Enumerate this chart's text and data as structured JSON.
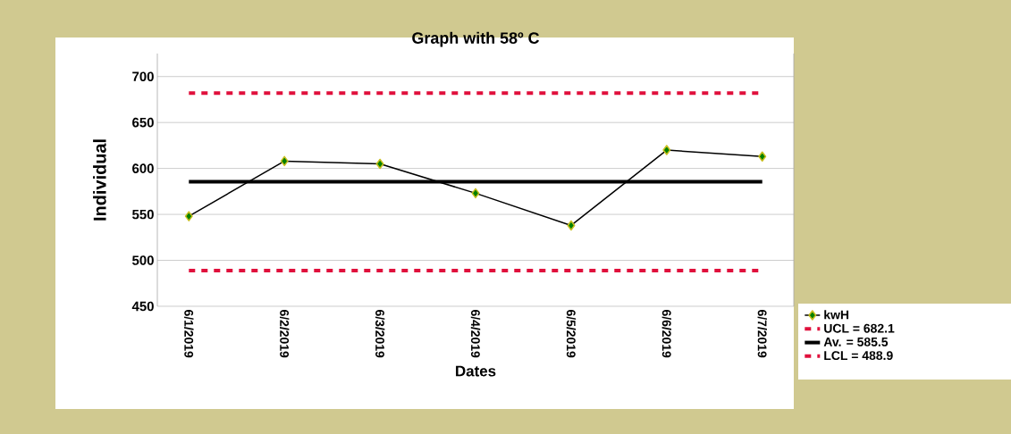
{
  "chart_data": {
    "type": "line",
    "title": "Graph with 58º C",
    "xlabel": "Dates",
    "ylabel": "Individual",
    "categories": [
      "6/1/2019",
      "6/2/2019",
      "6/3/2019",
      "6/4/2019",
      "6/5/2019",
      "6/6/2019",
      "6/7/2019"
    ],
    "series": [
      {
        "name": "kwH",
        "color": "#000000",
        "values": [
          548,
          608,
          605,
          573,
          538,
          620,
          613
        ]
      }
    ],
    "ylim": [
      450,
      725
    ],
    "yticks": [
      450,
      500,
      550,
      600,
      650,
      700
    ],
    "grid": "y",
    "marker": "diamond",
    "legend": "bottom right",
    "ref_lines": [
      {
        "axis": "y",
        "value": 682.1,
        "label": "UCL = 682.1",
        "color": "#e0103c",
        "line_style": "dashed"
      },
      {
        "axis": "y",
        "value": 585.5,
        "label": "Av. = 585.5",
        "color": "#000000",
        "line_style": "solid"
      },
      {
        "axis": "y",
        "value": 488.9,
        "label": "LCL = 488.9",
        "color": "#e0103c",
        "line_style": "dashed"
      }
    ]
  }
}
